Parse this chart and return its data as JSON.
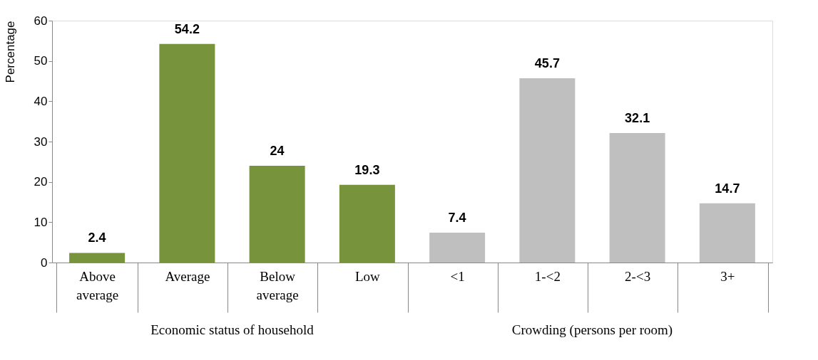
{
  "chart_data": {
    "type": "bar",
    "ylabel": "Percentage",
    "categories": [
      "Above average",
      "Average",
      "Below average",
      "Low",
      "<1",
      "1-<2",
      "2-<3",
      "3+"
    ],
    "values": [
      2.4,
      54.2,
      24,
      19.3,
      7.4,
      45.7,
      32.1,
      14.7
    ],
    "colors": [
      "#77933c",
      "#77933c",
      "#77933c",
      "#77933c",
      "#bfbfbf",
      "#bfbfbf",
      "#bfbfbf",
      "#bfbfbf"
    ],
    "ylim": [
      0,
      60
    ],
    "yticks": [
      0,
      10,
      20,
      30,
      40,
      50,
      60
    ],
    "grid": false,
    "data_labels": true,
    "annotations": [
      "Economic status of household",
      "Crowding (persons per room)"
    ]
  }
}
